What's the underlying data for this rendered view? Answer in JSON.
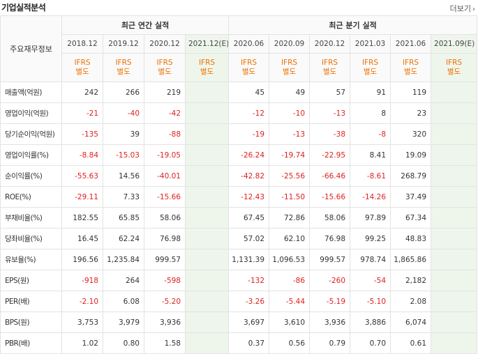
{
  "header": {
    "title": "기업실적분석",
    "more_label": "더보기",
    "more_icon": "chevron-right-icon"
  },
  "table": {
    "row_header": "주요재무정보",
    "groups": {
      "annual": "최근 연간 실적",
      "quarter": "최근 분기 실적"
    },
    "periods": [
      "2018.12",
      "2019.12",
      "2020.12",
      "2021.12(E)",
      "2020.06",
      "2020.09",
      "2020.12",
      "2021.03",
      "2021.06",
      "2021.09(E)"
    ],
    "ifrs_line1": "IFRS",
    "ifrs_line2": "별도",
    "rows": [
      {
        "label": "매출액(억원)",
        "values": [
          "242",
          "266",
          "219",
          "",
          "45",
          "49",
          "57",
          "91",
          "119",
          ""
        ]
      },
      {
        "label": "영업이익(억원)",
        "values": [
          "-21",
          "-40",
          "-42",
          "",
          "-12",
          "-10",
          "-13",
          "8",
          "23",
          ""
        ]
      },
      {
        "label": "당기순이익(억원)",
        "values": [
          "-135",
          "39",
          "-88",
          "",
          "-19",
          "-13",
          "-38",
          "-8",
          "320",
          ""
        ]
      },
      {
        "label": "영업이익률(%)",
        "values": [
          "-8.84",
          "-15.03",
          "-19.05",
          "",
          "-26.24",
          "-19.74",
          "-22.95",
          "8.41",
          "19.09",
          ""
        ]
      },
      {
        "label": "순이익률(%)",
        "values": [
          "-55.63",
          "14.56",
          "-40.01",
          "",
          "-42.82",
          "-25.56",
          "-66.46",
          "-8.61",
          "268.79",
          ""
        ]
      },
      {
        "label": "ROE(%)",
        "values": [
          "-29.11",
          "7.33",
          "-15.66",
          "",
          "-12.43",
          "-11.50",
          "-15.66",
          "-14.26",
          "37.49",
          ""
        ]
      },
      {
        "label": "부채비율(%)",
        "values": [
          "182.55",
          "65.85",
          "58.06",
          "",
          "67.45",
          "72.86",
          "58.06",
          "97.89",
          "67.34",
          ""
        ]
      },
      {
        "label": "당좌비율(%)",
        "values": [
          "16.45",
          "62.24",
          "76.98",
          "",
          "57.02",
          "62.10",
          "76.98",
          "99.25",
          "48.83",
          ""
        ]
      },
      {
        "label": "유보율(%)",
        "values": [
          "196.56",
          "1,235.84",
          "999.57",
          "",
          "1,131.39",
          "1,096.53",
          "999.57",
          "978.74",
          "1,865.86",
          ""
        ]
      },
      {
        "label": "EPS(원)",
        "values": [
          "-918",
          "264",
          "-598",
          "",
          "-132",
          "-86",
          "-260",
          "-54",
          "2,182",
          ""
        ]
      },
      {
        "label": "PER(배)",
        "values": [
          "-2.10",
          "6.08",
          "-5.20",
          "",
          "-3.26",
          "-5.44",
          "-5.19",
          "-5.10",
          "2.08",
          ""
        ]
      },
      {
        "label": "BPS(원)",
        "values": [
          "3,753",
          "3,979",
          "3,936",
          "",
          "3,697",
          "3,610",
          "3,936",
          "3,886",
          "6,074",
          ""
        ]
      },
      {
        "label": "PBR(배)",
        "values": [
          "1.02",
          "0.80",
          "1.58",
          "",
          "0.37",
          "0.56",
          "0.79",
          "0.70",
          "0.61",
          ""
        ]
      }
    ]
  },
  "colors": {
    "negative": "#e02020",
    "ifrs": "#f07000",
    "estimate_bg": "#f4f9f2"
  }
}
